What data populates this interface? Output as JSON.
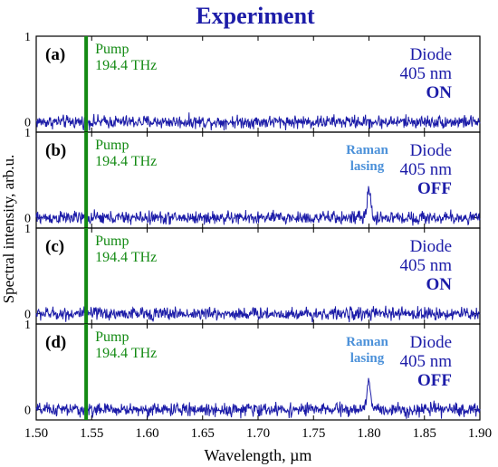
{
  "chart_data": {
    "type": "line",
    "title": "Experiment",
    "xlabel": "Wavelength, µm",
    "ylabel": "Spectral intensity, arb.u.",
    "xlim": [
      1.5,
      1.9
    ],
    "ylim": [
      -0.12,
      1.0
    ],
    "x_ticks": [
      "1.50",
      "1.55",
      "1.60",
      "1.65",
      "1.70",
      "1.75",
      "1.80",
      "1.85",
      "1.90"
    ],
    "y_ticks": [
      "0",
      "1"
    ],
    "pump_wavelength": 1.545,
    "pump_label_1": "Pump",
    "pump_label_2": "194.4 THz",
    "raman_peak_wavelength": 1.8,
    "colors": {
      "signal": "#1c1ca8",
      "pump": "#138a13",
      "annotation": "#4a90d9",
      "title": "#1c1ca8"
    },
    "panels": [
      {
        "tag": "(a)",
        "diode_1": "Diode",
        "diode_2": "405 nm",
        "state": "ON",
        "raman_label_1": "",
        "raman_label_2": "",
        "peak_height": 0
      },
      {
        "tag": "(b)",
        "diode_1": "Diode",
        "diode_2": "405 nm",
        "state": "OFF",
        "raman_label_1": "Raman",
        "raman_label_2": "lasing",
        "peak_height": 0.33
      },
      {
        "tag": "(c)",
        "diode_1": "Diode",
        "diode_2": "405 nm",
        "state": "ON",
        "raman_label_1": "",
        "raman_label_2": "",
        "peak_height": 0
      },
      {
        "tag": "(d)",
        "diode_1": "Diode",
        "diode_2": "405 nm",
        "state": "OFF",
        "raman_label_1": "Raman",
        "raman_label_2": "lasing",
        "peak_height": 0.35
      }
    ]
  }
}
